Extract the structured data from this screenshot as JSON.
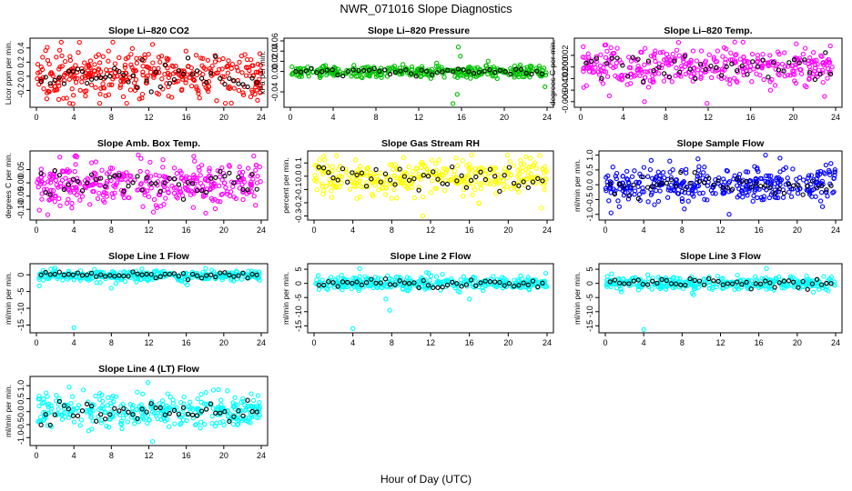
{
  "figure": {
    "title": "NWR_071016  Slope Diagnostics",
    "xlabel": "Hour of Day (UTC)"
  },
  "chart_data": [
    {
      "type": "scatter",
      "title": "Slope Li–820 CO2",
      "ylabel": "Licor ppm per min.",
      "x_ticks": [
        "0",
        "4",
        "8",
        "12",
        "16",
        "20",
        "24"
      ],
      "xlim": [
        0,
        24
      ],
      "y_ticks": [
        "-0.2",
        "0.0",
        "0.2",
        "0.4"
      ],
      "ylim": [
        -0.4,
        0.5
      ],
      "color": "#ff0000",
      "spread": 0.16,
      "center": 0.02,
      "n": 360,
      "outliers": [
        [
          3.9,
          -0.39
        ],
        [
          4.6,
          0.48
        ],
        [
          12.4,
          0.45
        ],
        [
          20.8,
          -0.38
        ],
        [
          23.6,
          -0.34
        ]
      ]
    },
    {
      "type": "scatter",
      "title": "Slope Li–820 Pressure",
      "ylabel": "kPa per min.",
      "x_ticks": [
        "0",
        "4",
        "8",
        "12",
        "16",
        "20",
        "24"
      ],
      "xlim": [
        0,
        24
      ],
      "y_ticks": [
        "-0.04",
        "0.00",
        "0.02",
        "0.04",
        "0.06"
      ],
      "ylim": [
        -0.065,
        0.06
      ],
      "color": "#00c000",
      "spread": 0.006,
      "center": 0.0,
      "n": 360,
      "outliers": [
        [
          15.7,
          0.048
        ],
        [
          15.2,
          -0.063
        ],
        [
          15.6,
          -0.045
        ],
        [
          15.9,
          0.03
        ],
        [
          23.8,
          -0.03
        ]
      ]
    },
    {
      "type": "scatter",
      "title": "Slope Li–820 Temp.",
      "ylabel": "degrees C per min.",
      "x_ticks": [
        "0",
        "4",
        "8",
        "12",
        "16",
        "20",
        "24"
      ],
      "xlim": [
        0,
        24
      ],
      "y_ticks": [
        "-0.006",
        "-0.004",
        "-0.002",
        "0.000",
        "0.002"
      ],
      "ylim": [
        -0.0065,
        0.0045
      ],
      "color": "#ff00ff",
      "spread": 0.0016,
      "center": 0.0,
      "n": 360,
      "outliers": [
        [
          11.9,
          -0.0063
        ],
        [
          14.5,
          0.0043
        ],
        [
          6.0,
          -0.006
        ],
        [
          20.3,
          0.004
        ]
      ]
    },
    {
      "type": "scatter",
      "title": "Slope Amb. Box Temp.",
      "ylabel": "degrees C per min.",
      "x_ticks": [
        "0",
        "4",
        "8",
        "12",
        "16",
        "20",
        "24"
      ],
      "xlim": [
        0,
        24
      ],
      "y_ticks": [
        "-0.10",
        "-0.05",
        "0.00",
        "0.05"
      ],
      "ylim": [
        -0.13,
        0.11
      ],
      "color": "#ff00ff",
      "spread": 0.04,
      "center": 0.0,
      "n": 360,
      "outliers": [
        [
          1.2,
          -0.12
        ],
        [
          4.1,
          0.1
        ],
        [
          16.8,
          0.1
        ],
        [
          12.5,
          -0.11
        ]
      ]
    },
    {
      "type": "scatter",
      "title": "Slope Gas Stream RH",
      "ylabel": "percent per min.",
      "x_ticks": [
        "0",
        "4",
        "8",
        "12",
        "16",
        "20",
        "24"
      ],
      "xlim": [
        0,
        24
      ],
      "y_ticks": [
        "-0.3",
        "-0.2",
        "-0.1",
        "0.0",
        "0.1"
      ],
      "ylim": [
        -0.31,
        0.17
      ],
      "color": "#ffff00",
      "spread": 0.07,
      "center": -0.01,
      "n": 360,
      "outliers": [
        [
          11.2,
          -0.3
        ],
        [
          1.0,
          0.15
        ],
        [
          23.4,
          -0.24
        ]
      ]
    },
    {
      "type": "scatter",
      "title": "Slope Sample Flow",
      "ylabel": "ml/min per min.",
      "x_ticks": [
        "0",
        "4",
        "8",
        "12",
        "16",
        "20",
        "24"
      ],
      "xlim": [
        0,
        24
      ],
      "y_ticks": [
        "-1.0",
        "-0.5",
        "0.0",
        "0.5",
        "1.0"
      ],
      "ylim": [
        -1.1,
        1.05
      ],
      "color": "#0000ff",
      "spread": 0.32,
      "center": 0.0,
      "n": 360,
      "outliers": [
        [
          0.6,
          -0.95
        ],
        [
          12.9,
          -1.0
        ],
        [
          16.7,
          1.0
        ],
        [
          18.2,
          0.9
        ]
      ]
    },
    {
      "type": "scatter",
      "title": "Slope Line 1 Flow",
      "ylabel": "ml/min per min.",
      "x_ticks": [
        "0",
        "4",
        "8",
        "12",
        "16",
        "20",
        "24"
      ],
      "xlim": [
        0,
        24
      ],
      "y_ticks": [
        "-15",
        "-10",
        "-5",
        "0"
      ],
      "ylim": [
        -16.5,
        2.5
      ],
      "color": "#00ffff",
      "spread": 0.8,
      "center": -0.2,
      "n": 340,
      "outliers": [
        [
          4.0,
          -15.8
        ],
        [
          6.2,
          1.6
        ],
        [
          8.0,
          -4.0
        ],
        [
          16.1,
          -3.0
        ]
      ]
    },
    {
      "type": "scatter",
      "title": "Slope Line 2 Flow",
      "ylabel": "ml/min per min.",
      "x_ticks": [
        "0",
        "4",
        "8",
        "12",
        "16",
        "20",
        "24"
      ],
      "xlim": [
        0,
        24
      ],
      "y_ticks": [
        "-15",
        "-10",
        "-5",
        "0",
        "5"
      ],
      "ylim": [
        -16.5,
        6.0
      ],
      "color": "#00ffff",
      "spread": 1.2,
      "center": 0.0,
      "n": 340,
      "outliers": [
        [
          4.0,
          -16.0
        ],
        [
          7.8,
          -9.5
        ],
        [
          7.4,
          -5.5
        ],
        [
          4.7,
          5.2
        ],
        [
          16.0,
          -5.5
        ]
      ]
    },
    {
      "type": "scatter",
      "title": "Slope Line 3 Flow",
      "ylabel": "ml/min per min.",
      "x_ticks": [
        "0",
        "4",
        "8",
        "12",
        "16",
        "20",
        "24"
      ],
      "xlim": [
        0,
        24
      ],
      "y_ticks": [
        "-15",
        "-10",
        "-5",
        "0",
        "5"
      ],
      "ylim": [
        -16.5,
        6.0
      ],
      "color": "#00ffff",
      "spread": 1.2,
      "center": 0.0,
      "n": 340,
      "outliers": [
        [
          4.0,
          -16.3
        ],
        [
          16.8,
          5.3
        ],
        [
          9.2,
          -4.0
        ]
      ]
    },
    {
      "type": "scatter",
      "title": "Slope Line 4 (LT) Flow",
      "ylabel": "ml/min per min.",
      "x_ticks": [
        "0",
        "4",
        "8",
        "12",
        "16",
        "20",
        "24"
      ],
      "xlim": [
        0,
        24
      ],
      "y_ticks": [
        "-1.0",
        "-0.5",
        "0.0",
        "0.5",
        "1.0"
      ],
      "ylim": [
        -1.2,
        1.25
      ],
      "color": "#00ffff",
      "spread": 0.3,
      "center": 0.0,
      "n": 340,
      "outliers": [
        [
          12.4,
          -1.15
        ],
        [
          3.5,
          0.95
        ],
        [
          11.9,
          1.12
        ]
      ]
    }
  ]
}
